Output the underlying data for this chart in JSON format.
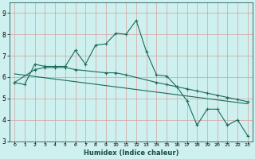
{
  "xlabel": "Humidex (Indice chaleur)",
  "bg_color": "#cef0ee",
  "grid_color": "#d4a0a0",
  "line_color": "#1a6b5a",
  "xlim": [
    -0.5,
    23.5
  ],
  "ylim": [
    3.0,
    9.5
  ],
  "yticks": [
    3,
    4,
    5,
    6,
    7,
    8,
    9
  ],
  "xticks": [
    0,
    1,
    2,
    3,
    4,
    5,
    6,
    7,
    8,
    9,
    10,
    11,
    12,
    13,
    14,
    15,
    16,
    17,
    18,
    19,
    20,
    21,
    22,
    23
  ],
  "line1_x": [
    0,
    1,
    2,
    3,
    4,
    5,
    6,
    7,
    8,
    9,
    10,
    11,
    12,
    13,
    14,
    15,
    16,
    17,
    18,
    19,
    20,
    21,
    22,
    23
  ],
  "line1_y": [
    5.75,
    5.65,
    6.6,
    6.5,
    6.5,
    6.5,
    7.25,
    6.6,
    7.5,
    7.55,
    8.05,
    8.0,
    8.65,
    7.2,
    6.1,
    6.05,
    5.55,
    4.9,
    3.75,
    4.5,
    4.5,
    3.75,
    4.0,
    3.25
  ],
  "line2_x": [
    0,
    2,
    3,
    4,
    5,
    6,
    9,
    10,
    11,
    14,
    15,
    16,
    17,
    18,
    19,
    20,
    21,
    22,
    23
  ],
  "line2_y": [
    5.75,
    6.35,
    6.45,
    6.45,
    6.45,
    6.35,
    6.2,
    6.2,
    6.1,
    5.75,
    5.65,
    5.55,
    5.45,
    5.35,
    5.25,
    5.15,
    5.05,
    4.95,
    4.85
  ],
  "line3_x": [
    0,
    23
  ],
  "line3_y": [
    6.15,
    4.75
  ]
}
